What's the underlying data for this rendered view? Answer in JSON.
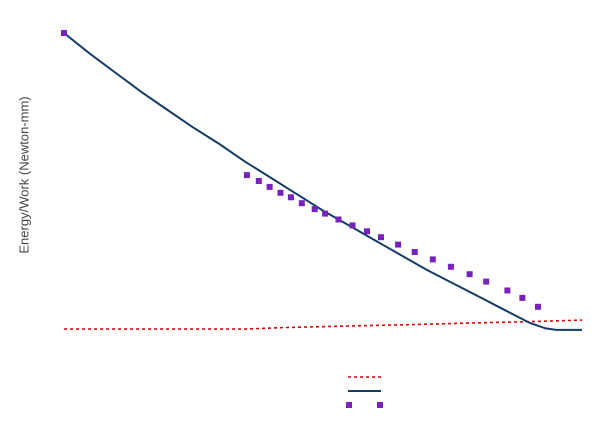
{
  "chart_data": {
    "type": "line",
    "title": "",
    "xlabel": "",
    "ylabel": "Energy/Work (Newton-mm)",
    "xlim": [
      0,
      1
    ],
    "ylim": [
      0,
      1
    ],
    "grid": false,
    "legend": "bottom-center",
    "series": [
      {
        "style": "dotted",
        "color": "#dd0000",
        "x": [
          0,
          0.35,
          0.43,
          0.55,
          0.67,
          0.78,
          0.9,
          1.0
        ],
        "y": [
          0.0,
          0.0,
          0.005,
          0.01,
          0.015,
          0.02,
          0.025,
          0.03
        ]
      },
      {
        "style": "solid",
        "color": "#143c66",
        "x": [
          0,
          0.05,
          0.1,
          0.15,
          0.2,
          0.25,
          0.3,
          0.35,
          0.4,
          0.45,
          0.5,
          0.55,
          0.6,
          0.65,
          0.7,
          0.75,
          0.8,
          0.85,
          0.9,
          0.93,
          0.95,
          1.0
        ],
        "y": [
          1.0,
          0.93,
          0.865,
          0.8,
          0.74,
          0.68,
          0.625,
          0.565,
          0.51,
          0.455,
          0.4,
          0.35,
          0.3,
          0.25,
          0.2,
          0.155,
          0.11,
          0.065,
          0.02,
          0.002,
          -0.003,
          -0.003
        ]
      },
      {
        "style": "markers",
        "color": "#7722bb",
        "x": [
          0,
          0.353,
          0.376,
          0.397,
          0.418,
          0.438,
          0.459,
          0.484,
          0.504,
          0.53,
          0.557,
          0.585,
          0.612,
          0.645,
          0.677,
          0.712,
          0.747,
          0.783,
          0.815,
          0.856,
          0.885,
          0.915
        ],
        "y": [
          1.0,
          0.52,
          0.5,
          0.48,
          0.46,
          0.445,
          0.425,
          0.405,
          0.39,
          0.37,
          0.35,
          0.33,
          0.31,
          0.285,
          0.26,
          0.235,
          0.21,
          0.185,
          0.16,
          0.13,
          0.105,
          0.075
        ]
      }
    ]
  }
}
